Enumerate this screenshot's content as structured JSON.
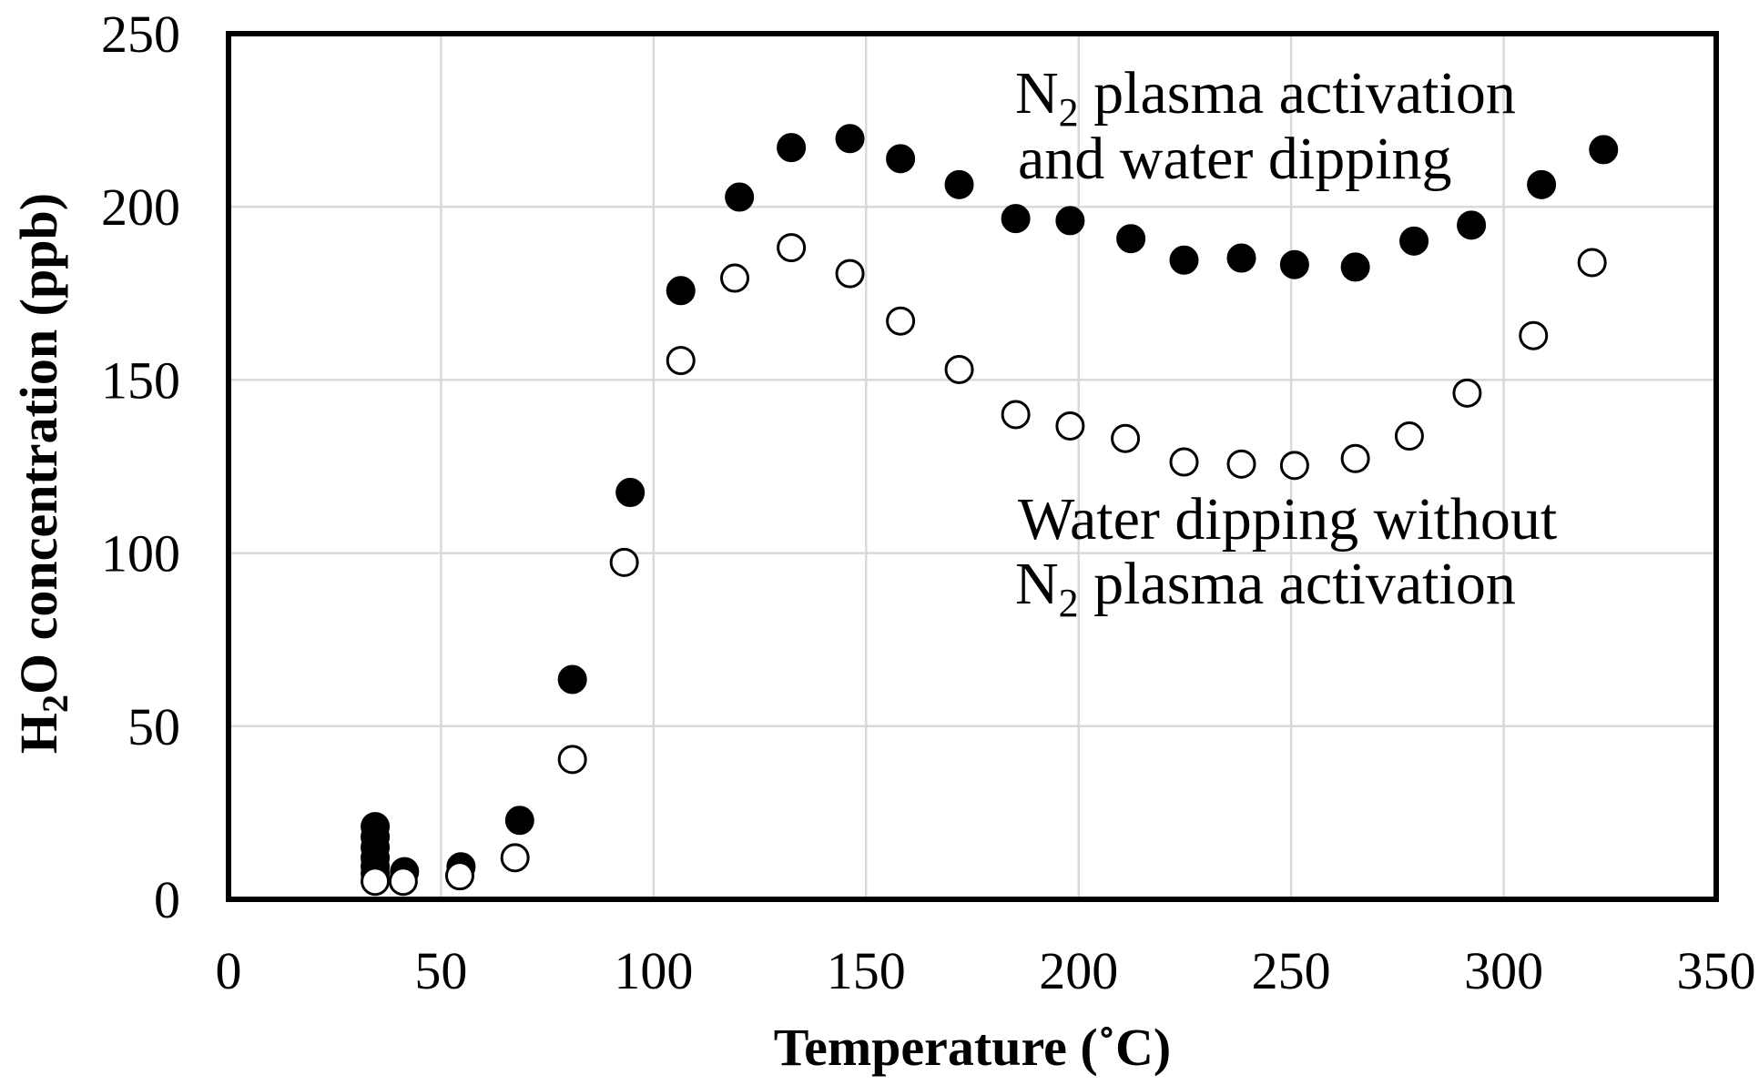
{
  "chart_data": {
    "type": "scatter",
    "title": "",
    "xlabel": "Temperature (˚C)",
    "ylabel": {
      "a": "H",
      "sub": "2",
      "b": "O concentration (ppb)"
    },
    "xlim": [
      0,
      350
    ],
    "ylim": [
      0,
      250
    ],
    "xticks": [
      0,
      50,
      100,
      150,
      200,
      250,
      300,
      350
    ],
    "yticks": [
      0,
      50,
      100,
      150,
      200,
      250
    ],
    "grid": true,
    "series": [
      {
        "fill": "#000000",
        "stroke": "#000000",
        "x": [
          34.5,
          34.5,
          34.5,
          34.5,
          34.5,
          34.5,
          41.4,
          54.7,
          68.5,
          80.9,
          94.5,
          106.4,
          120.2,
          132.4,
          146.2,
          158.1,
          171.9,
          185.2,
          198.0,
          212.3,
          224.8,
          238.3,
          250.8,
          265.1,
          278.9,
          292.4,
          308.9,
          323.5
        ],
        "y": [
          21.0,
          18.0,
          15.0,
          12.0,
          9.5,
          7.5,
          8.0,
          9.4,
          22.8,
          63.5,
          117.5,
          175.8,
          202.8,
          217.1,
          219.7,
          213.9,
          206.4,
          196.6,
          196.0,
          190.8,
          184.6,
          185.2,
          183.3,
          182.6,
          190.1,
          194.7,
          206.4,
          216.5
        ]
      },
      {
        "fill": "#ffffff",
        "stroke": "#000000",
        "x": [
          34.5,
          41.1,
          54.4,
          67.4,
          80.9,
          93.1,
          106.4,
          119.1,
          132.4,
          146.2,
          158.1,
          171.9,
          185.2,
          198.0,
          211.0,
          224.8,
          238.3,
          250.8,
          265.1,
          277.8,
          291.4,
          307.0,
          320.8
        ],
        "y": [
          5.2,
          5.2,
          6.8,
          12.0,
          40.4,
          97.3,
          155.6,
          179.4,
          188.2,
          180.7,
          167.0,
          153.0,
          140.0,
          136.7,
          133.1,
          126.3,
          125.7,
          125.3,
          127.3,
          133.8,
          146.2,
          162.8,
          183.9
        ]
      }
    ],
    "annotations": [
      {
        "line1": {
          "a": "N",
          "sub": "2",
          "b": " plasma activation"
        },
        "line2": "and water dipping"
      },
      {
        "line1": "Water dipping without",
        "line2": {
          "a": "N",
          "sub": "2",
          "b": " plasma activation"
        }
      }
    ]
  }
}
